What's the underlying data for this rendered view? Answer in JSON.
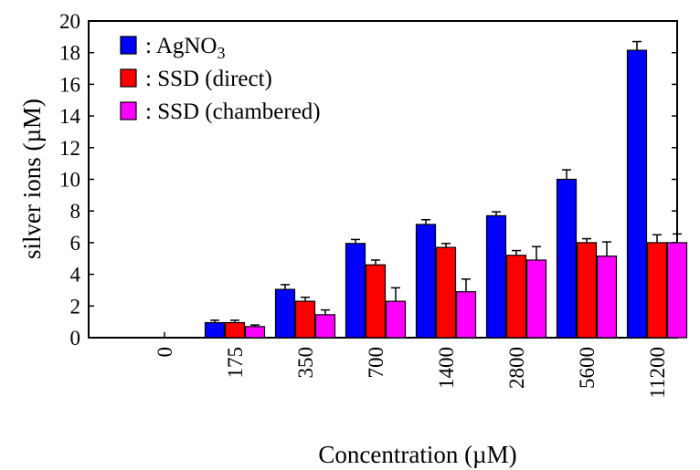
{
  "chart_data": {
    "type": "bar",
    "xlabel": "Concentration (µM)",
    "ylabel": "silver ions (µM)",
    "ylim": [
      0,
      20
    ],
    "yticks": [
      0,
      2,
      4,
      6,
      8,
      10,
      12,
      14,
      16,
      18,
      20
    ],
    "categories": [
      "0",
      "175",
      "350",
      "700",
      "1400",
      "2800",
      "5600",
      "11200"
    ],
    "grid": false,
    "legend_position": "top-left",
    "series": [
      {
        "name": ": AgNO",
        "name_subscript": "3",
        "color": "#0000ff",
        "values": [
          0,
          0.95,
          3.05,
          5.95,
          7.15,
          7.7,
          10.0,
          18.15
        ],
        "errors": [
          0,
          0.15,
          0.3,
          0.25,
          0.3,
          0.25,
          0.6,
          0.55
        ]
      },
      {
        "name": ": SSD (direct)",
        "color": "#ff0000",
        "values": [
          0,
          0.95,
          2.3,
          4.6,
          5.7,
          5.2,
          6.0,
          6.0
        ],
        "errors": [
          0,
          0.15,
          0.25,
          0.3,
          0.25,
          0.3,
          0.25,
          0.5
        ]
      },
      {
        "name": ": SSD (chambered)",
        "color": "#ff00ff",
        "values": [
          0,
          0.7,
          1.45,
          2.3,
          2.9,
          4.9,
          5.15,
          6.0
        ],
        "errors": [
          0,
          0.1,
          0.3,
          0.85,
          0.8,
          0.85,
          0.9,
          0.55
        ]
      }
    ]
  }
}
